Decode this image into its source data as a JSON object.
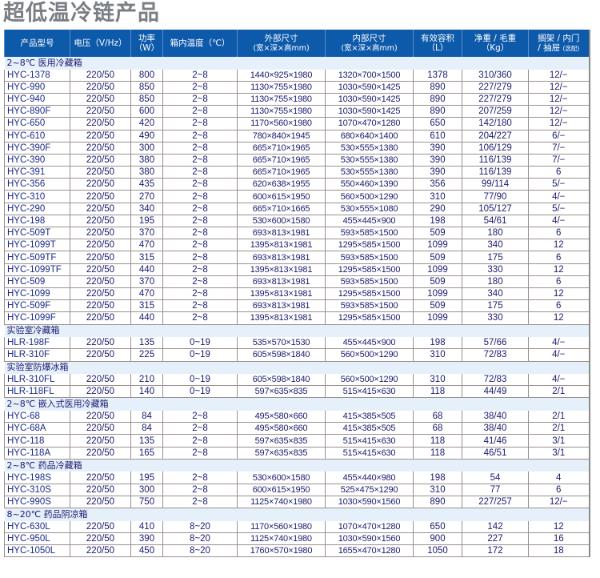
{
  "title": "超低温冷链产品",
  "header": {
    "model": "产品型号",
    "voltage": "电压（V/Hz）",
    "power_line1": "功率",
    "power_line2": "（W）",
    "temp": "箱内温度（℃）",
    "outer_line1": "外部尺寸",
    "outer_line2": "(宽×深×高mm)",
    "inner_line1": "内部尺寸",
    "inner_line2": "(宽×深×高mm)",
    "volume_line1": "有效容积",
    "volume_line2": "（L）",
    "weight_line1": "净重 / 毛重",
    "weight_line2": "（Kg）",
    "shelf_line1": "搁架 / 内门",
    "shelf_line2": "/ 抽屉",
    "shelf_note": "(选配)"
  },
  "groups": [
    {
      "name": "2~8℃ 医用冷藏箱",
      "rows": [
        [
          "HYC-1378",
          "220/50",
          "800",
          "2~8",
          "1440×925×1980",
          "1320×700×1500",
          "1378",
          "310/360",
          "12/−"
        ],
        [
          "HYC-990",
          "220/50",
          "850",
          "2~8",
          "1130×755×1980",
          "1030×590×1425",
          "890",
          "227/279",
          "12/−"
        ],
        [
          "HYC-940",
          "220/50",
          "850",
          "2~8",
          "1130×755×1980",
          "1030×590×1425",
          "890",
          "227/279",
          "12/−"
        ],
        [
          "HYC-890F",
          "220/50",
          "600",
          "2~8",
          "1130×755×1980",
          "1030×590×1425",
          "890",
          "207/259",
          "12/−"
        ],
        [
          "HYC-650",
          "220/50",
          "420",
          "2~8",
          "1170×560×1980",
          "1070×470×1280",
          "650",
          "142/180",
          "12/−"
        ],
        [
          "HYC-610",
          "220/50",
          "490",
          "2~8",
          "780×840×1945",
          "680×640×1400",
          "610",
          "204/227",
          "6/−"
        ],
        [
          "HYC-390F",
          "220/50",
          "300",
          "2~8",
          "665×710×1965",
          "530×555×1380",
          "390",
          "106/129",
          "7/−"
        ],
        [
          "HYC-390",
          "220/50",
          "380",
          "2~8",
          "665×710×1965",
          "530×555×1380",
          "390",
          "116/139",
          "7/−"
        ],
        [
          "HYC-391",
          "220/50",
          "380",
          "2~8",
          "665×710×1965",
          "530×555×1380",
          "390",
          "116/139",
          "6"
        ],
        [
          "HYC-356",
          "220/50",
          "435",
          "2~8",
          "620×638×1955",
          "550×460×1390",
          "356",
          "99/114",
          "5/−"
        ],
        [
          "HYC-310",
          "220/50",
          "270",
          "2~8",
          "600×615×1950",
          "560×500×1290",
          "310",
          "77/90",
          "4/−"
        ],
        [
          "HYC-290",
          "220/50",
          "340",
          "2~8",
          "665×710×1665",
          "530×555×1080",
          "290",
          "105/127",
          "5/−"
        ],
        [
          "HYC-198",
          "220/50",
          "195",
          "2~8",
          "530×600×1580",
          "455×445×900",
          "198",
          "54/61",
          "4/−"
        ],
        [
          "HYC-509T",
          "220/50",
          "370",
          "2~8",
          "693×813×1981",
          "593×585×1500",
          "509",
          "180",
          "6"
        ],
        [
          "HYC-1099T",
          "220/50",
          "470",
          "2~8",
          "1395×813×1981",
          "1295×585×1500",
          "1099",
          "340",
          "12"
        ],
        [
          "HYC-509TF",
          "220/50",
          "315",
          "2~8",
          "693×813×1981",
          "593×585×1500",
          "509",
          "175",
          "6"
        ],
        [
          "HYC-1099TF",
          "220/50",
          "440",
          "2~8",
          "1395×813×1981",
          "1295×585×1500",
          "1099",
          "330",
          "12"
        ],
        [
          "HYC-509",
          "220/50",
          "370",
          "2~8",
          "693×813×1981",
          "593×585×1500",
          "509",
          "180",
          "6"
        ],
        [
          "HYC-1099",
          "220/50",
          "470",
          "2~8",
          "1395×813×1981",
          "1295×585×1500",
          "1099",
          "340",
          "12"
        ],
        [
          "HYC-509F",
          "220/50",
          "315",
          "2~8",
          "693×813×1981",
          "593×585×1500",
          "509",
          "175",
          "6"
        ],
        [
          "HYC-1099F",
          "220/50",
          "440",
          "2~8",
          "1395×813×1981",
          "1295×585×1500",
          "1099",
          "330",
          "12"
        ]
      ]
    },
    {
      "name": "实验室冷藏箱",
      "rows": [
        [
          "HLR-198F",
          "220/50",
          "135",
          "0~19",
          "535×570×1530",
          "455×445×900",
          "198",
          "57/66",
          "4/−"
        ],
        [
          "HLR-310F",
          "220/50",
          "225",
          "0~19",
          "605×598×1840",
          "560×500×1290",
          "310",
          "72/83",
          "4/−"
        ]
      ]
    },
    {
      "name": "实验室防爆冰箱",
      "rows": [
        [
          "HLR-310FL",
          "220/50",
          "210",
          "0~19",
          "605×598×1840",
          "560×500×1290",
          "310",
          "72/83",
          "4/−"
        ],
        [
          "HLR-118FL",
          "220/50",
          "140",
          "0~19",
          "597×635×835",
          "515×415×630",
          "118",
          "44/49",
          "2/1"
        ]
      ]
    },
    {
      "name": "2~8℃ 嵌入式医用冷藏箱",
      "rows": [
        [
          "HYC-68",
          "220/50",
          "84",
          "2~8",
          "495×580×660",
          "415×385×505",
          "68",
          "38/40",
          "2/1"
        ],
        [
          "HYC-68A",
          "220/50",
          "84",
          "2~8",
          "495×580×660",
          "415×385×505",
          "68",
          "38/40",
          "2/1"
        ],
        [
          "HYC-118",
          "220/50",
          "135",
          "2~8",
          "597×635×835",
          "515×415×630",
          "118",
          "41/46",
          "3/1"
        ],
        [
          "HYC-118A",
          "220/50",
          "165",
          "2~8",
          "597×635×835",
          "515×415×630",
          "118",
          "46/51",
          "3/1"
        ]
      ]
    },
    {
      "name": "2~8℃ 药品冷藏箱",
      "rows": [
        [
          "HYC-198S",
          "220/50",
          "195",
          "2~8",
          "530×600×1580",
          "455×440×980",
          "198",
          "54",
          "4"
        ],
        [
          "HYC-310S",
          "220/50",
          "300",
          "2~8",
          "600×615×1950",
          "525×475×1290",
          "310",
          "77",
          "6"
        ],
        [
          "HYC-990S",
          "220/50",
          "750",
          "2~8",
          "1125×740×1980",
          "1030×590×1560",
          "890",
          "227/257",
          "12/−"
        ]
      ]
    },
    {
      "name": "8~20℃ 药品阴凉箱",
      "rows": [
        [
          "HYC-630L",
          "220/50",
          "410",
          "8~20",
          "1170×560×1980",
          "1070×470×1280",
          "650",
          "142",
          "12"
        ],
        [
          "HYC-950L",
          "220/50",
          "390",
          "8~20",
          "1125×740×1980",
          "1030×590×1560",
          "900",
          "227",
          "16"
        ],
        [
          "HYC-1050L",
          "220/50",
          "450",
          "8~20",
          "1760×570×1980",
          "1655×470×1280",
          "1050",
          "172",
          "18"
        ]
      ]
    }
  ]
}
